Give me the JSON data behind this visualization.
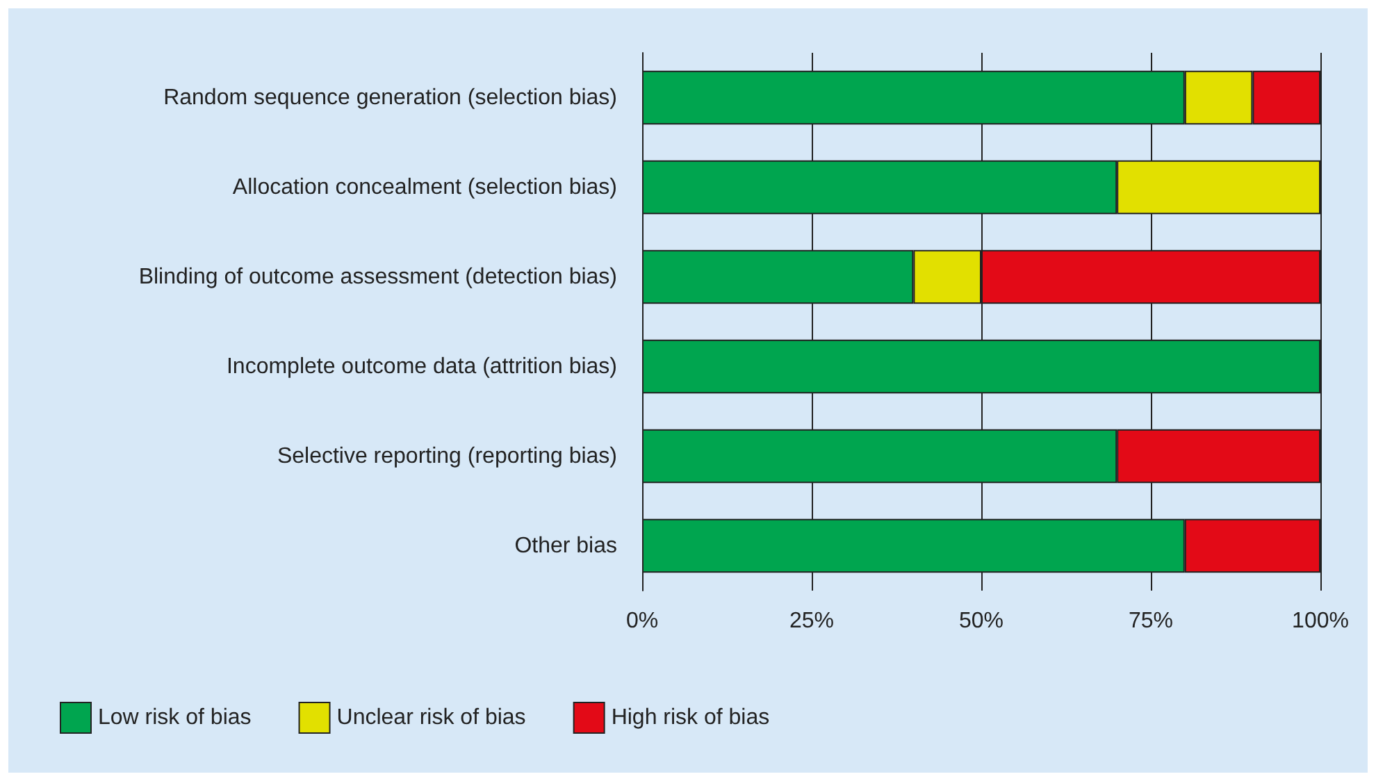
{
  "chart_data": {
    "type": "bar",
    "orientation": "horizontal",
    "stacked": true,
    "categories": [
      "Random sequence generation (selection bias)",
      "Allocation concealment (selection bias)",
      "Blinding of outcome assessment (detection bias)",
      "Incomplete outcome data (attrition bias)",
      "Selective reporting (reporting bias)",
      "Other bias"
    ],
    "series": [
      {
        "name": "Low risk of bias",
        "color": "#00a54f",
        "values": [
          80,
          70,
          40,
          100,
          70,
          80
        ]
      },
      {
        "name": "Unclear risk of bias",
        "color": "#e2e000",
        "values": [
          10,
          30,
          10,
          0,
          0,
          0
        ]
      },
      {
        "name": "High risk of bias",
        "color": "#e30a17",
        "values": [
          10,
          0,
          50,
          0,
          30,
          20
        ]
      }
    ],
    "xlim": [
      0,
      100
    ],
    "xticks": [
      {
        "value": 0,
        "label": "0%"
      },
      {
        "value": 25,
        "label": "25%"
      },
      {
        "value": 50,
        "label": "50%"
      },
      {
        "value": 75,
        "label": "75%"
      },
      {
        "value": 100,
        "label": "100%"
      }
    ],
    "grid": "x",
    "legend": "bottom left"
  }
}
